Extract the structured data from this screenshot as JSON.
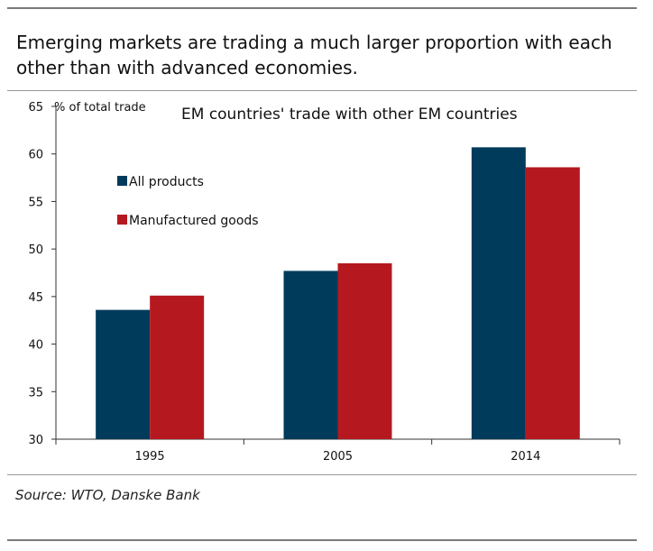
{
  "headline": "Emerging markets are trading a much larger proportion with each other than with advanced economies.",
  "source": "Source: WTO, Danske Bank",
  "colors": {
    "all_products": "#003B5C",
    "manufactured_goods": "#B5191F",
    "axis": "#333333",
    "rule": "#7a7a7a"
  },
  "chart_data": {
    "type": "bar",
    "title": "EM countries' trade with other EM countries",
    "ylabel": "% of total trade",
    "xlabel": "",
    "categories": [
      "1995",
      "2005",
      "2014"
    ],
    "series": [
      {
        "name": "All products",
        "values": [
          43.6,
          47.7,
          60.7
        ]
      },
      {
        "name": "Manufactured goods",
        "values": [
          45.1,
          48.5,
          58.6
        ]
      }
    ],
    "ylim": [
      30,
      65
    ],
    "yticks": [
      30,
      35,
      40,
      45,
      50,
      55,
      60,
      65
    ],
    "grid": false,
    "legend": "top-left"
  }
}
